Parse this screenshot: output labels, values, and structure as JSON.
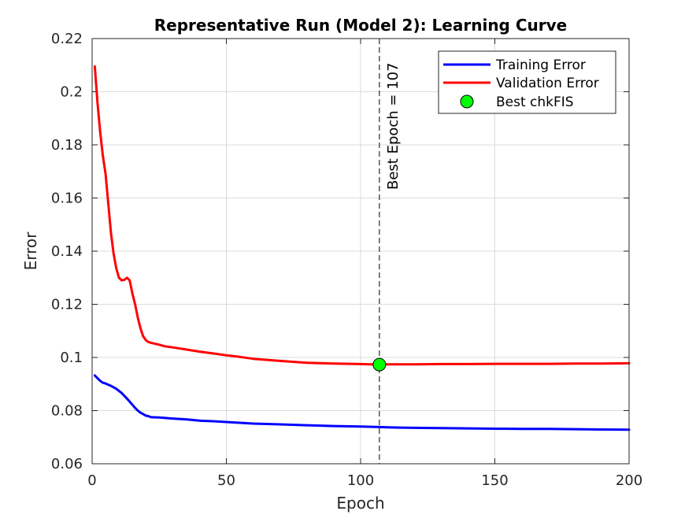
{
  "chart_data": {
    "type": "line",
    "title": "Representative Run (Model 2): Learning Curve",
    "xlabel": "Epoch",
    "ylabel": "Error",
    "xlim": [
      0,
      200
    ],
    "ylim": [
      0.06,
      0.22
    ],
    "xticks": [
      0,
      50,
      100,
      150,
      200
    ],
    "xtick_labels": [
      "0",
      "50",
      "100",
      "150",
      "200"
    ],
    "yticks": [
      0.06,
      0.08,
      0.1,
      0.12,
      0.14,
      0.16,
      0.18,
      0.2,
      0.22
    ],
    "ytick_labels": [
      "0.06",
      "0.08",
      "0.1",
      "0.12",
      "0.14",
      "0.16",
      "0.18",
      "0.2",
      "0.22"
    ],
    "grid": true,
    "legend_position": "top-right",
    "series": [
      {
        "name": "Training Error",
        "color": "#0000ff",
        "x": [
          1,
          2,
          3,
          4,
          5,
          7,
          9,
          11,
          13,
          15,
          16,
          17,
          18,
          19,
          20,
          21,
          22,
          25,
          30,
          35,
          40,
          45,
          50,
          55,
          60,
          70,
          80,
          90,
          100,
          107,
          110,
          120,
          130,
          140,
          150,
          160,
          170,
          180,
          190,
          200
        ],
        "y": [
          0.0932,
          0.0922,
          0.0912,
          0.0905,
          0.0902,
          0.0893,
          0.0882,
          0.0866,
          0.0845,
          0.0822,
          0.081,
          0.08,
          0.0792,
          0.0787,
          0.0781,
          0.0779,
          0.0775,
          0.0774,
          0.077,
          0.0767,
          0.0762,
          0.076,
          0.0757,
          0.0754,
          0.0751,
          0.0748,
          0.0745,
          0.0742,
          0.074,
          0.0738,
          0.0737,
          0.0735,
          0.0734,
          0.0733,
          0.0732,
          0.0731,
          0.0731,
          0.073,
          0.0729,
          0.0728
        ]
      },
      {
        "name": "Validation Error",
        "color": "#ff0000",
        "x": [
          1,
          2,
          3,
          4,
          5,
          6,
          7,
          8,
          9,
          10,
          11,
          12,
          13,
          14,
          15,
          16,
          17,
          18,
          19,
          20,
          21,
          22,
          25,
          27,
          30,
          35,
          40,
          45,
          50,
          55,
          60,
          70,
          80,
          90,
          100,
          107,
          110,
          120,
          130,
          140,
          150,
          160,
          170,
          180,
          190,
          200
        ],
        "y": [
          0.2095,
          0.196,
          0.185,
          0.176,
          0.169,
          0.158,
          0.147,
          0.139,
          0.1335,
          0.13,
          0.129,
          0.1292,
          0.13,
          0.129,
          0.124,
          0.12,
          0.115,
          0.111,
          0.108,
          0.1065,
          0.1058,
          0.1055,
          0.1048,
          0.1042,
          0.1038,
          0.103,
          0.1022,
          0.1015,
          0.1008,
          0.1002,
          0.0995,
          0.0987,
          0.098,
          0.0977,
          0.0975,
          0.0973,
          0.0974,
          0.0974,
          0.0975,
          0.0975,
          0.0976,
          0.0976,
          0.0976,
          0.0977,
          0.0977,
          0.0978
        ]
      }
    ],
    "best_point": {
      "name": "Best chkFIS",
      "x": 107,
      "y": 0.0973,
      "color": "#00ff00"
    },
    "vline": {
      "x": 107,
      "label": "Best Epoch = 107"
    },
    "legend": [
      "Training Error",
      "Validation Error",
      "Best chkFIS"
    ]
  }
}
